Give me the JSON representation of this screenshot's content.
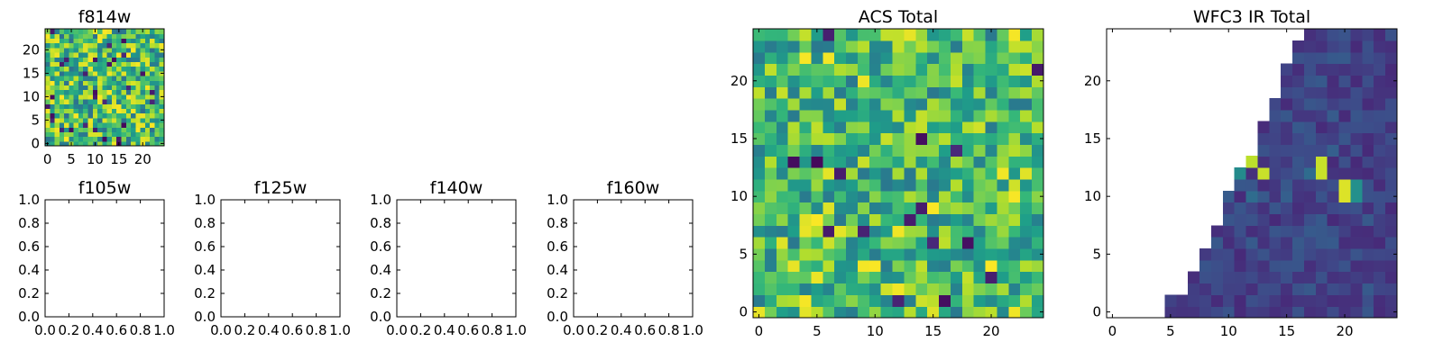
{
  "colormap": "viridis",
  "chart_data": [
    {
      "id": "f814w",
      "type": "heatmap",
      "title": "f814w",
      "grid_size": [
        25,
        25
      ],
      "xlim": [
        -0.5,
        24.5
      ],
      "ylim": [
        -0.5,
        24.5
      ],
      "xticks": [
        0,
        5,
        10,
        15,
        20
      ],
      "yticks": [
        0,
        5,
        10,
        15,
        20
      ],
      "pattern": "random",
      "seed": 11,
      "base": 0.68,
      "spread": 0.32,
      "grid": false
    },
    {
      "id": "f105w",
      "type": "heatmap",
      "title": "f105w",
      "empty": true,
      "xlim": [
        0,
        1
      ],
      "ylim": [
        0,
        1
      ],
      "xticks": [
        "0.0",
        "0.2",
        "0.4",
        "0.6",
        "0.8",
        "1.0"
      ],
      "yticks": [
        "0.0",
        "0.2",
        "0.4",
        "0.6",
        "0.8",
        "1.0"
      ]
    },
    {
      "id": "f125w",
      "type": "heatmap",
      "title": "f125w",
      "empty": true,
      "xlim": [
        0,
        1
      ],
      "ylim": [
        0,
        1
      ],
      "xticks": [
        "0.0",
        "0.2",
        "0.4",
        "0.6",
        "0.8",
        "1.0"
      ],
      "yticks": [
        "0.0",
        "0.2",
        "0.4",
        "0.6",
        "0.8",
        "1.0"
      ]
    },
    {
      "id": "f140w",
      "type": "heatmap",
      "title": "f140w",
      "empty": true,
      "xlim": [
        0,
        1
      ],
      "ylim": [
        0,
        1
      ],
      "xticks": [
        "0.0",
        "0.2",
        "0.4",
        "0.6",
        "0.8",
        "1.0"
      ],
      "yticks": [
        "0.0",
        "0.2",
        "0.4",
        "0.6",
        "0.8",
        "1.0"
      ]
    },
    {
      "id": "f160w",
      "type": "heatmap",
      "title": "f160w",
      "empty": true,
      "xlim": [
        0,
        1
      ],
      "ylim": [
        0,
        1
      ],
      "xticks": [
        "0.0",
        "0.2",
        "0.4",
        "0.6",
        "0.8",
        "1.0"
      ],
      "yticks": [
        "0.0",
        "0.2",
        "0.4",
        "0.6",
        "0.8",
        "1.0"
      ]
    },
    {
      "id": "acs-total",
      "type": "heatmap",
      "title": "ACS Total",
      "grid_size": [
        25,
        25
      ],
      "xlim": [
        -0.5,
        24.5
      ],
      "ylim": [
        -0.5,
        24.5
      ],
      "xticks": [
        0,
        5,
        10,
        15,
        20
      ],
      "yticks": [
        0,
        5,
        10,
        15,
        20
      ],
      "pattern": "random",
      "seed": 29,
      "base": 0.66,
      "spread": 0.26,
      "grid": false
    },
    {
      "id": "wfc3-ir-total",
      "type": "heatmap",
      "title": "WFC3 IR Total",
      "grid_size": [
        25,
        25
      ],
      "xlim": [
        -0.5,
        24.5
      ],
      "ylim": [
        -0.5,
        24.5
      ],
      "xticks": [
        0,
        5,
        10,
        15,
        20
      ],
      "yticks": [
        0,
        5,
        10,
        15,
        20
      ],
      "pattern": "wedge",
      "coverage_start_col": [
        5,
        5,
        7,
        7,
        8,
        8,
        9,
        9,
        10,
        10,
        10,
        11,
        11,
        12,
        13,
        13,
        13,
        14,
        14,
        15,
        15,
        15,
        16,
        16,
        17
      ],
      "seed": 53,
      "base": 0.2,
      "spread": 0.14,
      "bright_cells": [
        [
          20,
          10,
          0.95
        ],
        [
          20,
          11,
          0.95
        ],
        [
          21,
          10,
          0.5
        ],
        [
          21,
          11,
          0.5
        ],
        [
          18,
          12,
          0.92
        ],
        [
          18,
          13,
          0.92
        ],
        [
          12,
          13,
          0.9
        ],
        [
          13,
          12,
          0.92
        ],
        [
          11,
          12,
          0.48
        ],
        [
          17,
          12,
          0.35
        ],
        [
          15,
          10,
          0.3
        ],
        [
          19,
          14,
          0.3
        ],
        [
          12,
          10,
          0.35
        ],
        [
          10,
          11,
          0.3
        ]
      ],
      "grid": false
    }
  ]
}
